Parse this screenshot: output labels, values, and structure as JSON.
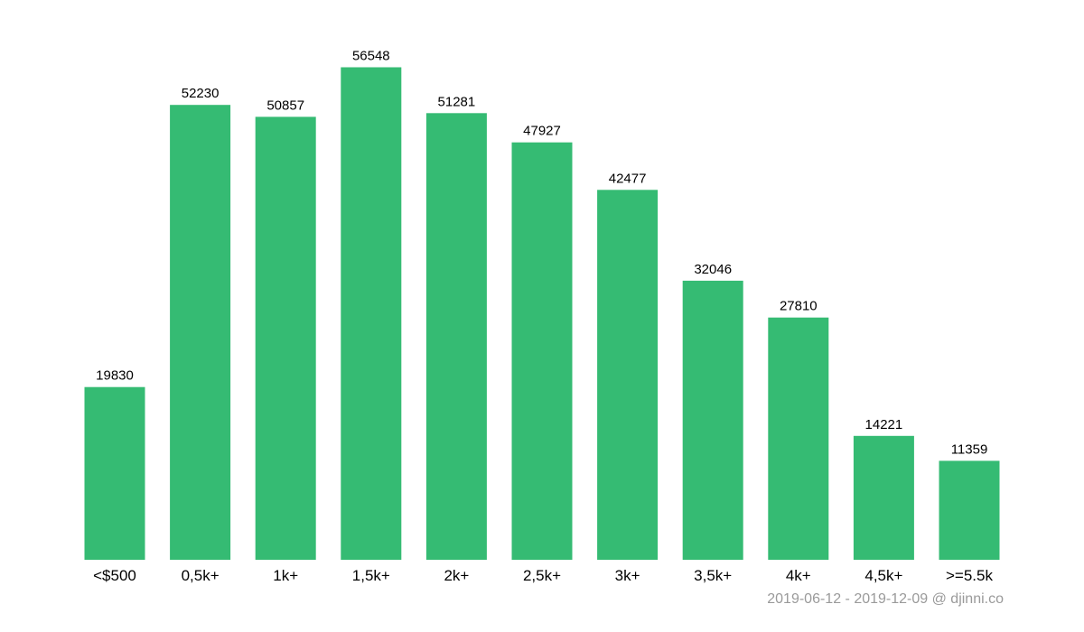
{
  "chart_data": {
    "type": "bar",
    "categories": [
      "<$500",
      "0,5k+",
      "1k+",
      "1,5k+",
      "2k+",
      "2,5k+",
      "3k+",
      "3,5k+",
      "4k+",
      "4,5k+",
      ">=5.5k"
    ],
    "values": [
      19830,
      52230,
      50857,
      56548,
      51281,
      47927,
      42477,
      32046,
      27810,
      14221,
      11359
    ],
    "ylim": [
      0,
      60000
    ],
    "grid": false,
    "legend": "none",
    "bar_color": "#35bb73"
  },
  "caption": "2019-06-12 - 2019-12-09 @ djinni.co"
}
